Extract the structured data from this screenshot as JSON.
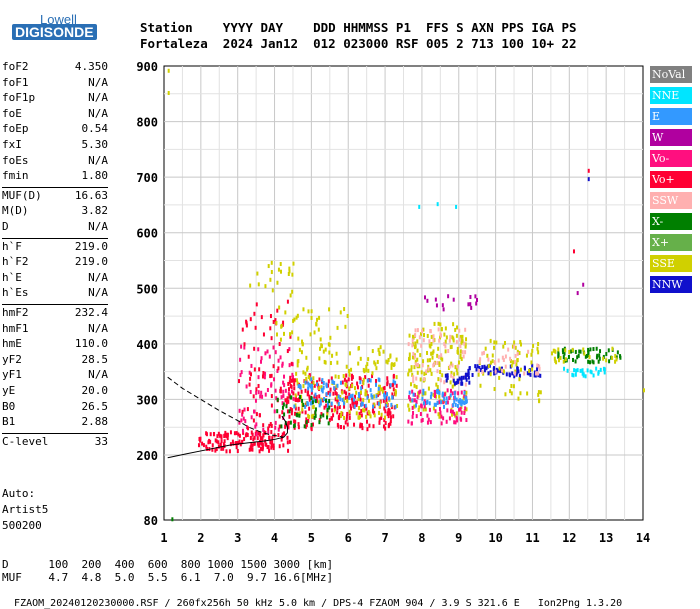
{
  "logo": {
    "top": "Lowell",
    "bottom": "DIGISONDE"
  },
  "header": {
    "labels": [
      "Station",
      "YYYY",
      "DAY",
      "DDD",
      "HHMMSS",
      "P1",
      "FFS",
      "S",
      "AXN",
      "PPS",
      "IGA",
      "PS"
    ],
    "values": [
      "Fortaleza",
      "2024",
      "Jan12",
      "012",
      "023000",
      "RSF",
      "005",
      "2",
      "713",
      "100",
      "10+",
      "22"
    ]
  },
  "params": [
    {
      "name": "foF2",
      "value": "4.350"
    },
    {
      "name": "foF1",
      "value": "N/A"
    },
    {
      "name": "foF1p",
      "value": "N/A"
    },
    {
      "name": "foE",
      "value": "N/A"
    },
    {
      "name": "foEp",
      "value": "0.54"
    },
    {
      "name": "fxI",
      "value": "5.30"
    },
    {
      "name": "foEs",
      "value": "N/A"
    },
    {
      "name": "fmin",
      "value": "1.80"
    },
    {
      "name": "MUF(D)",
      "value": "16.63"
    },
    {
      "name": "M(D)",
      "value": "3.82"
    },
    {
      "name": "D",
      "value": "N/A"
    },
    {
      "name": "h`F",
      "value": "219.0"
    },
    {
      "name": "h`F2",
      "value": "219.0"
    },
    {
      "name": "h`E",
      "value": "N/A"
    },
    {
      "name": "h`Es",
      "value": "N/A"
    },
    {
      "name": "hmF2",
      "value": "232.4"
    },
    {
      "name": "hmF1",
      "value": "N/A"
    },
    {
      "name": "hmE",
      "value": "110.0"
    },
    {
      "name": "yF2",
      "value": "28.5"
    },
    {
      "name": "yF1",
      "value": "N/A"
    },
    {
      "name": "yE",
      "value": "20.0"
    },
    {
      "name": "B0",
      "value": "26.5"
    },
    {
      "name": "B1",
      "value": "2.88"
    },
    {
      "name": "C-level",
      "value": "33"
    }
  ],
  "auto": {
    "line1": "Auto:",
    "line2": "Artist5",
    "line3": "500200"
  },
  "legend": [
    {
      "label": "NoVal",
      "color": "#808080",
      "text_color": "#ffffff"
    },
    {
      "label": "NNE",
      "color": "#00e5ff",
      "text_color": "#ffffff"
    },
    {
      "label": "E",
      "color": "#3399ff",
      "text_color": "#ffffff"
    },
    {
      "label": "W",
      "color": "#b0009f",
      "text_color": "#ffffff"
    },
    {
      "label": "Vo-",
      "color": "#ff0f7f",
      "text_color": "#ffffff"
    },
    {
      "label": "Vo+",
      "color": "#ff0033",
      "text_color": "#ffffff"
    },
    {
      "label": "SSW",
      "color": "#ffb0b0",
      "text_color": "#ffffff"
    },
    {
      "label": "X-",
      "color": "#007f00",
      "text_color": "#ffffff"
    },
    {
      "label": "X+",
      "color": "#66b04a",
      "text_color": "#ffffff"
    },
    {
      "label": "SSE",
      "color": "#d0d000",
      "text_color": "#ffffff"
    },
    {
      "label": "NNW",
      "color": "#1010cc",
      "text_color": "#ffffff"
    }
  ],
  "chart_data": {
    "type": "scatter",
    "xlim": [
      1,
      14
    ],
    "ylim": [
      80,
      900
    ],
    "x_ticks": [
      "1",
      "2",
      "3",
      "4",
      "5",
      "6",
      "7",
      "8",
      "9",
      "10",
      "11",
      "12",
      "13",
      "14"
    ],
    "y_ticks": [
      "80",
      "200",
      "300",
      "400",
      "500",
      "600",
      "700",
      "800",
      "900"
    ],
    "grid": true,
    "legend_placement": "right",
    "clusters": [
      {
        "series": "Vo+",
        "x": [
          1.9,
          4.4
        ],
        "y": [
          210,
          245
        ],
        "n": 140
      },
      {
        "series": "Vo-",
        "x": [
          3.0,
          4.5
        ],
        "y": [
          240,
          400
        ],
        "n": 80
      },
      {
        "series": "Vo+",
        "x": [
          3.0,
          4.5
        ],
        "y": [
          250,
          480
        ],
        "n": 70
      },
      {
        "series": "SSE",
        "x": [
          3.3,
          4.5
        ],
        "y": [
          490,
          550
        ],
        "n": 20
      },
      {
        "series": "Vo+",
        "x": [
          4.3,
          7.3
        ],
        "y": [
          250,
          350
        ],
        "n": 260
      },
      {
        "series": "SSE",
        "x": [
          4.5,
          7.3
        ],
        "y": [
          270,
          400
        ],
        "n": 160
      },
      {
        "series": "E",
        "x": [
          4.5,
          7.3
        ],
        "y": [
          290,
          340
        ],
        "n": 90
      },
      {
        "series": "X-",
        "x": [
          4.0,
          5.5
        ],
        "y": [
          255,
          310
        ],
        "n": 40
      },
      {
        "series": "SSE",
        "x": [
          4.0,
          6.0
        ],
        "y": [
          400,
          470
        ],
        "n": 40
      },
      {
        "series": "SSE",
        "x": [
          7.6,
          9.2
        ],
        "y": [
          270,
          440
        ],
        "n": 160
      },
      {
        "series": "Vo-",
        "x": [
          7.6,
          9.2
        ],
        "y": [
          260,
          320
        ],
        "n": 80
      },
      {
        "series": "SSW",
        "x": [
          7.6,
          9.2
        ],
        "y": [
          330,
          430
        ],
        "n": 60
      },
      {
        "series": "E",
        "x": [
          7.6,
          9.2
        ],
        "y": [
          290,
          320
        ],
        "n": 50
      },
      {
        "series": "NNW",
        "x": [
          8.6,
          9.3
        ],
        "y": [
          330,
          350
        ],
        "n": 25
      },
      {
        "series": "W",
        "x": [
          8.0,
          9.5
        ],
        "y": [
          460,
          490
        ],
        "n": 15
      },
      {
        "series": "NNW",
        "x": [
          9.2,
          11.2
        ],
        "y": [
          345,
          365
        ],
        "n": 60
      },
      {
        "series": "SSE",
        "x": [
          9.5,
          11.2
        ],
        "y": [
          300,
          410
        ],
        "n": 60
      },
      {
        "series": "SSW",
        "x": [
          9.5,
          11.2
        ],
        "y": [
          350,
          400
        ],
        "n": 30
      },
      {
        "series": "X-",
        "x": [
          11.5,
          13.4
        ],
        "y": [
          370,
          395
        ],
        "n": 50
      },
      {
        "series": "NNE",
        "x": [
          11.8,
          13.0
        ],
        "y": [
          345,
          360
        ],
        "n": 25
      },
      {
        "series": "SSE",
        "x": [
          11.5,
          13.4
        ],
        "y": [
          370,
          395
        ],
        "n": 25
      }
    ],
    "points": [
      {
        "series": "NNE",
        "x": 7.9,
        "y": 650
      },
      {
        "series": "NNE",
        "x": 8.4,
        "y": 655
      },
      {
        "series": "NNE",
        "x": 8.9,
        "y": 650
      },
      {
        "series": "Vo+",
        "x": 12.1,
        "y": 570
      },
      {
        "series": "W",
        "x": 12.2,
        "y": 495
      },
      {
        "series": "W",
        "x": 12.35,
        "y": 510
      },
      {
        "series": "NNW",
        "x": 12.5,
        "y": 700
      },
      {
        "series": "Vo+",
        "x": 12.5,
        "y": 715
      },
      {
        "series": "SSE",
        "x": 1.1,
        "y": 895
      },
      {
        "series": "SSE",
        "x": 1.1,
        "y": 855
      },
      {
        "series": "SSE",
        "x": 14.0,
        "y": 320
      },
      {
        "series": "X-",
        "x": 1.2,
        "y": 85
      }
    ],
    "profile_solid": {
      "x": [
        1.1,
        1.6,
        2.2,
        2.8,
        3.3,
        3.7,
        4.0,
        4.25,
        4.35,
        4.35,
        4.3,
        4.2
      ],
      "y": [
        195,
        202,
        210,
        218,
        222,
        225,
        228,
        232,
        240,
        250,
        260,
        270
      ]
    },
    "profile_dashed": {
      "x": [
        1.1,
        1.5,
        2.0,
        2.5,
        3.0,
        3.3,
        3.6,
        3.9,
        4.1,
        4.25
      ],
      "y": [
        340,
        320,
        300,
        280,
        262,
        250,
        242,
        236,
        234,
        232
      ]
    }
  },
  "footer": {
    "row1_label": "D",
    "row1_values": [
      "100",
      "200",
      "400",
      "600",
      "800",
      "1000",
      "1500",
      "3000",
      "[km]"
    ],
    "row2_label": "MUF",
    "row2_values": [
      "4.7",
      "4.8",
      "5.0",
      "5.5",
      "6.1",
      "7.0",
      "9.7",
      "16.6",
      "[MHz]"
    ],
    "bottom_line": "FZAOM_20240120230000.RSF / 260fx256h 50 kHz 5.0 km / DPS-4 FZAOM 904 / 3.9 S 321.6 E",
    "version": "Ion2Png 1.3.20"
  }
}
